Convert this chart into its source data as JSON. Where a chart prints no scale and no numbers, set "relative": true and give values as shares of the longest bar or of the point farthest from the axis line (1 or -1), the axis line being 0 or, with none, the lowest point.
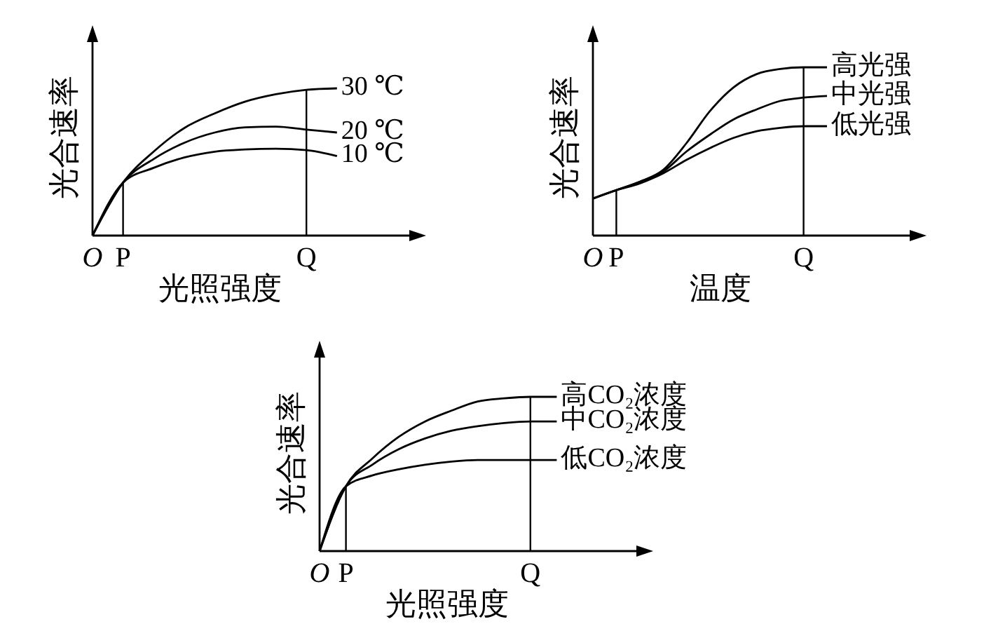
{
  "chart_data": [
    {
      "type": "line",
      "xlabel": "光照强度",
      "ylabel": "光合速率",
      "relative": true,
      "categories": [
        "O",
        "P",
        null,
        null,
        null,
        null,
        null,
        "Q",
        null
      ],
      "series": [
        {
          "name": "30 ℃",
          "color": "#000000",
          "values": [
            0,
            0.36,
            0.57,
            0.73,
            0.83,
            0.91,
            0.96,
            0.99,
            1.0
          ]
        },
        {
          "name": "20 ℃",
          "color": "#000000",
          "values": [
            0,
            0.36,
            0.52,
            0.63,
            0.7,
            0.735,
            0.74,
            0.72,
            0.7
          ]
        },
        {
          "name": "10 ℃",
          "color": "#000000",
          "values": [
            0,
            0.36,
            0.46,
            0.53,
            0.57,
            0.585,
            0.59,
            0.58,
            0.54
          ]
        }
      ],
      "ref_lines": [
        {
          "axis": "x",
          "value": "P",
          "color": "#000000"
        },
        {
          "axis": "x",
          "value": "Q",
          "color": "#000000"
        }
      ]
    },
    {
      "type": "line",
      "xlabel": "温度",
      "ylabel": "光合速率",
      "relative": true,
      "categories": [
        "O",
        "P",
        null,
        null,
        null,
        null,
        null,
        null,
        null,
        "Q",
        null
      ],
      "series": [
        {
          "name": "高光强",
          "color": "#000000",
          "values": [
            0.22,
            0.27,
            0.32,
            0.39,
            0.55,
            0.74,
            0.88,
            0.96,
            0.99,
            1.0,
            1.0
          ]
        },
        {
          "name": "中光强",
          "color": "#000000",
          "values": [
            0.22,
            0.27,
            0.32,
            0.38,
            0.5,
            0.6,
            0.69,
            0.75,
            0.8,
            0.82,
            0.83
          ]
        },
        {
          "name": "低光强",
          "color": "#000000",
          "values": [
            0.22,
            0.27,
            0.31,
            0.37,
            0.45,
            0.52,
            0.58,
            0.62,
            0.64,
            0.65,
            0.65
          ]
        }
      ],
      "ref_lines": [
        {
          "axis": "x",
          "value": "P",
          "color": "#000000"
        },
        {
          "axis": "x",
          "value": "Q",
          "color": "#000000"
        }
      ]
    },
    {
      "type": "line",
      "xlabel": "光照强度",
      "ylabel": "光合速率",
      "relative": true,
      "categories": [
        "O",
        "P",
        null,
        null,
        null,
        null,
        null,
        null,
        "Q",
        null
      ],
      "series": [
        {
          "name": "高CO₂浓度",
          "color": "#000000",
          "values": [
            0,
            0.42,
            0.6,
            0.74,
            0.84,
            0.91,
            0.97,
            0.99,
            1.0,
            1.0
          ]
        },
        {
          "name": "中CO₂浓度",
          "color": "#000000",
          "values": [
            0,
            0.42,
            0.56,
            0.66,
            0.73,
            0.78,
            0.81,
            0.83,
            0.84,
            0.84
          ]
        },
        {
          "name": "低CO₂浓度",
          "color": "#000000",
          "values": [
            0,
            0.42,
            0.49,
            0.53,
            0.56,
            0.58,
            0.59,
            0.59,
            0.59,
            0.59
          ]
        }
      ],
      "ref_lines": [
        {
          "axis": "x",
          "value": "P",
          "color": "#000000"
        },
        {
          "axis": "x",
          "value": "Q",
          "color": "#000000"
        }
      ]
    }
  ]
}
